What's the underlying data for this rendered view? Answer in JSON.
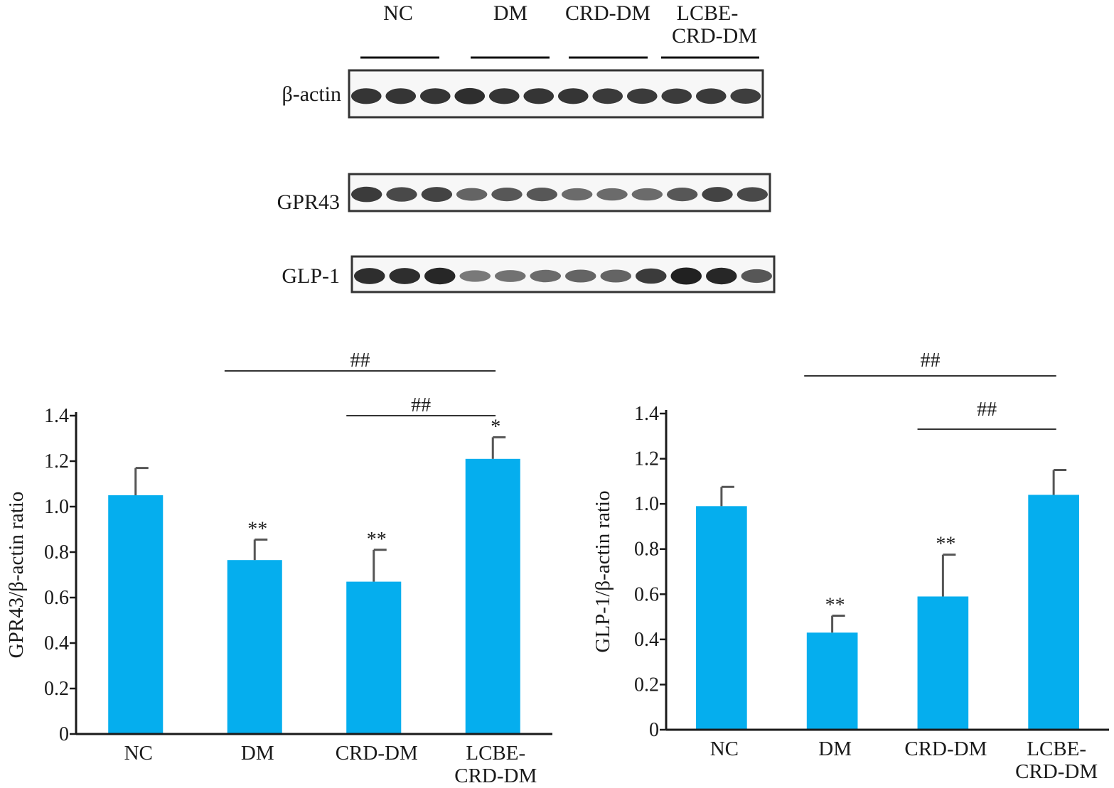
{
  "blot": {
    "groups": [
      "NC",
      "DM",
      "CRD-DM",
      "LCBE-",
      "CRD-DM"
    ],
    "rows": [
      {
        "label": "β-actin",
        "intensities": [
          0.85,
          0.85,
          0.85,
          0.9,
          0.85,
          0.85,
          0.85,
          0.82,
          0.8,
          0.8,
          0.82,
          0.78
        ]
      },
      {
        "label": "GPR43",
        "intensities": [
          0.8,
          0.7,
          0.75,
          0.5,
          0.6,
          0.6,
          0.45,
          0.45,
          0.45,
          0.6,
          0.75,
          0.7
        ]
      },
      {
        "label": "GLP-1",
        "intensities": [
          0.9,
          0.9,
          0.95,
          0.35,
          0.4,
          0.45,
          0.5,
          0.5,
          0.8,
          1.0,
          0.95,
          0.6
        ]
      }
    ]
  },
  "colors": {
    "bar": "#05AEEE",
    "axis": "#1a1a1a",
    "band": "#151515"
  },
  "chart_data": [
    {
      "type": "bar",
      "categories": [
        "NC",
        "DM",
        "CRD-DM",
        "LCBE-\nCRD-DM"
      ],
      "values": [
        1.05,
        0.765,
        0.67,
        1.21
      ],
      "errors": [
        0.12,
        0.09,
        0.14,
        0.095
      ],
      "bar_annotations": [
        "",
        "**",
        "**",
        "*"
      ],
      "brackets": [
        {
          "from": 1,
          "to": 3,
          "label": "##"
        },
        {
          "from": 2,
          "to": 3,
          "label": "##"
        }
      ],
      "ylabel": "GPR43/β-actin ratio",
      "ylim": [
        0,
        1.4
      ],
      "yticks": [
        "0",
        "0.2",
        "0.4",
        "0.6",
        "0.8",
        "1.0",
        "1.2",
        "1.4"
      ],
      "grid": false
    },
    {
      "type": "bar",
      "categories": [
        "NC",
        "DM",
        "CRD-DM",
        "LCBE-\nCRD-DM"
      ],
      "values": [
        0.99,
        0.43,
        0.59,
        1.04
      ],
      "errors": [
        0.085,
        0.075,
        0.185,
        0.11
      ],
      "bar_annotations": [
        "",
        "**",
        "**",
        ""
      ],
      "brackets": [
        {
          "from": 1,
          "to": 3,
          "label": "##"
        },
        {
          "from": 2,
          "to": 3,
          "label": "##"
        }
      ],
      "ylabel": "GLP-1/β-actin ratio",
      "ylim": [
        0,
        1.4
      ],
      "yticks": [
        "0",
        "0.2",
        "0.4",
        "0.6",
        "0.8",
        "1.0",
        "1.2",
        "1.4"
      ],
      "grid": false
    }
  ]
}
